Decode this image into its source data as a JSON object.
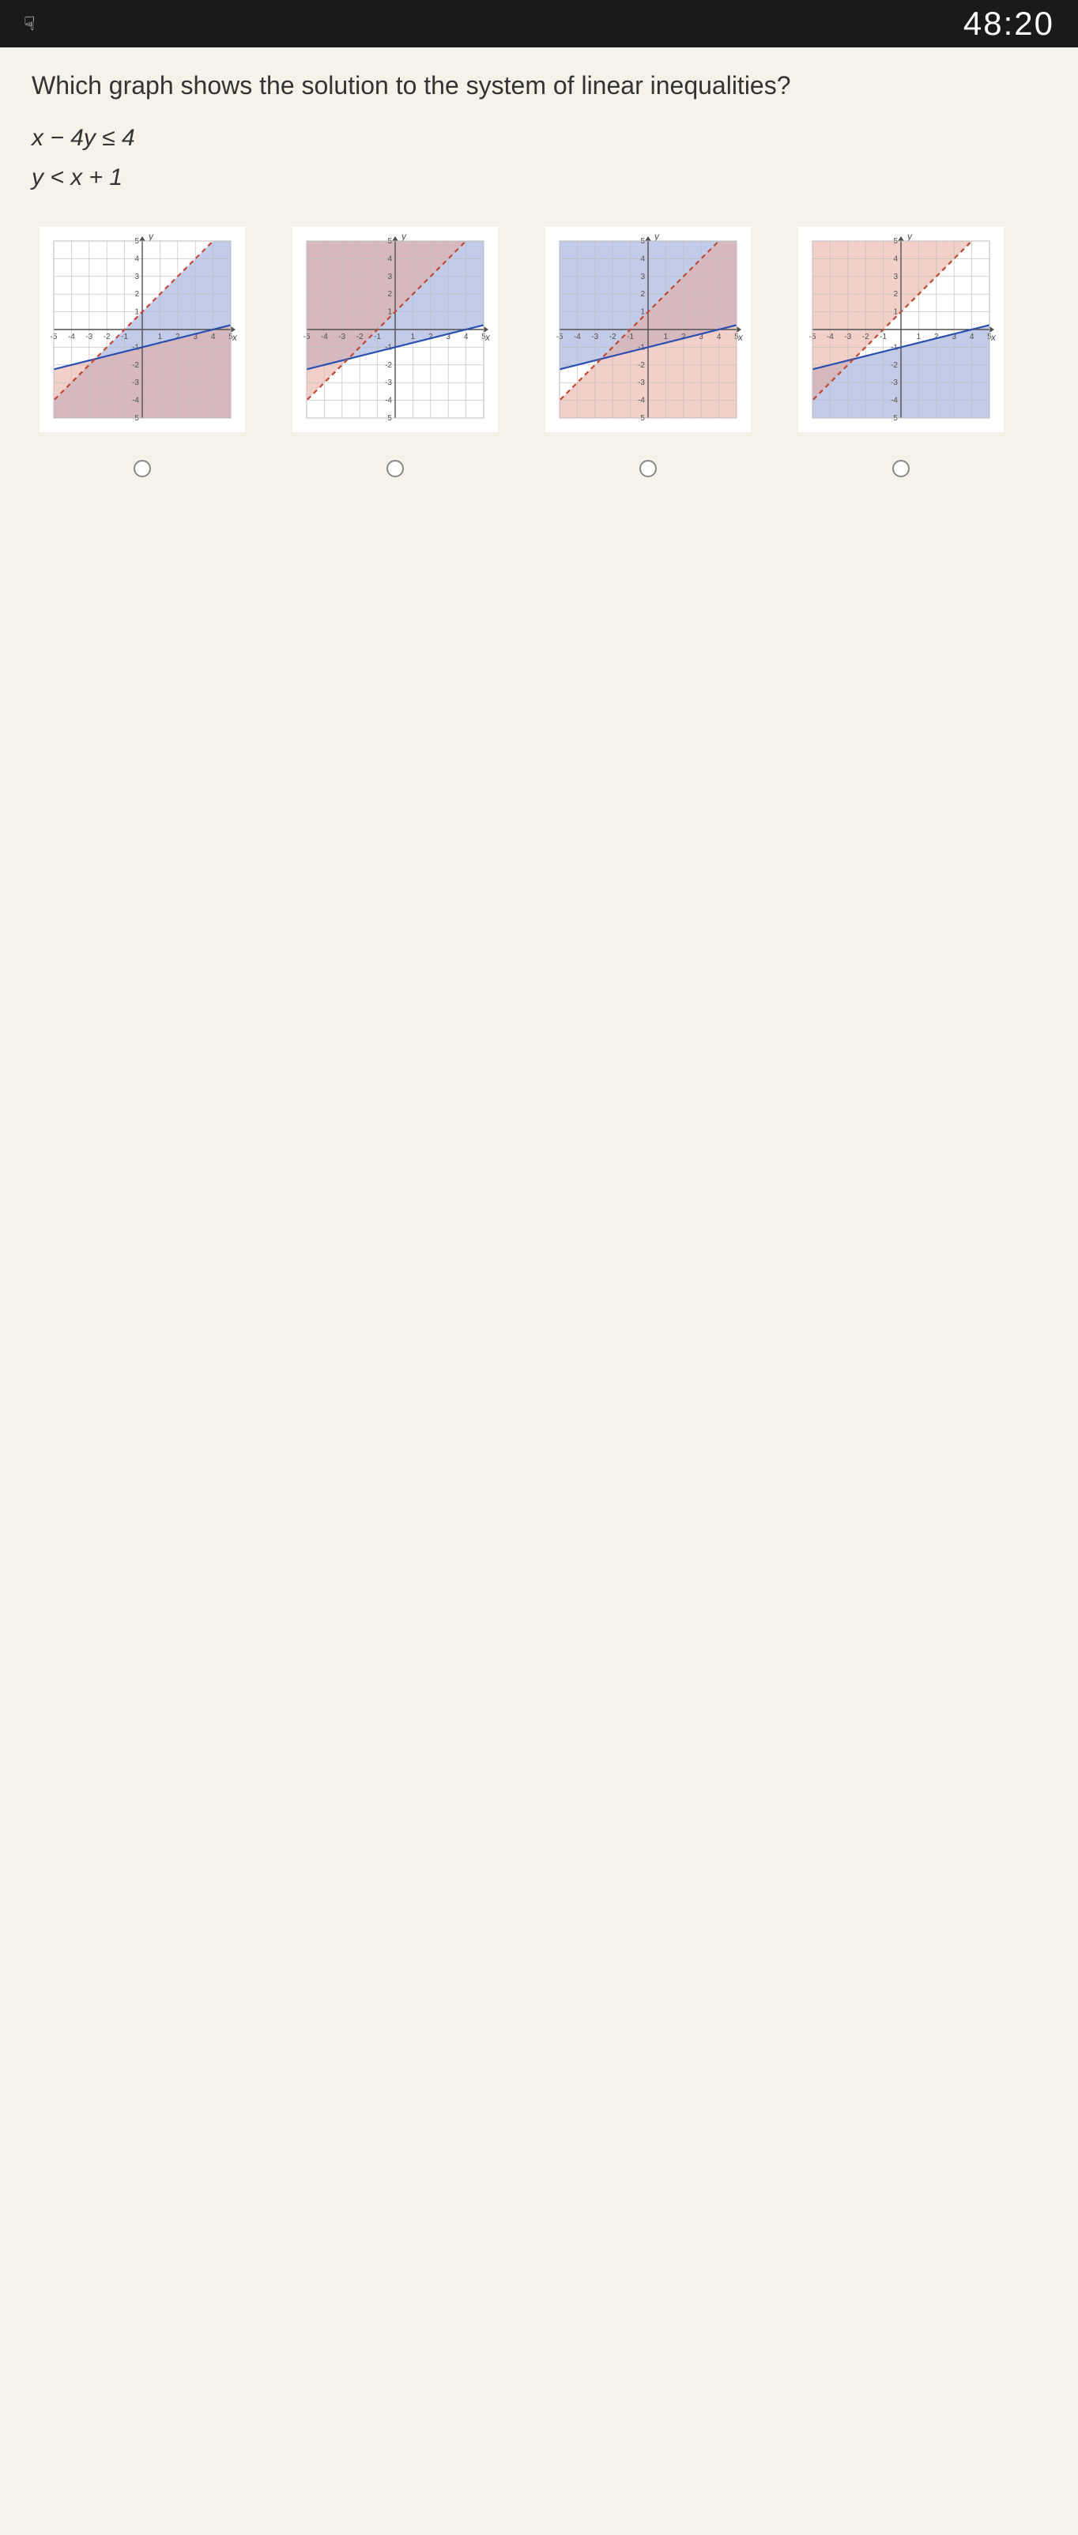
{
  "topbar": {
    "timer": "48:20"
  },
  "question": {
    "prompt": "Which graph shows the solution to the system of linear inequalities?",
    "ineq1_lhs": "x",
    "ineq1_mid": " − 4",
    "ineq1_rhs": "y",
    "ineq1_op": " ≤ 4",
    "ineq2_lhs": "y",
    "ineq2_mid": " < ",
    "ineq2_rhs": "x",
    "ineq2_end": " + 1"
  },
  "grid": {
    "min": -5,
    "max": 5,
    "bg": "#ffffff",
    "grid_color": "#bdbdbd",
    "axis_color": "#505050",
    "tick_fontsize": 10,
    "label_fontsize": 12
  },
  "colors": {
    "blue_fill": "#8fa3d6",
    "red_fill": "#e8a89a",
    "overlap": "#b08bb0",
    "solid_line": "#2a4fb0",
    "dash_line": "#c04a36",
    "fill_opacity": 0.55
  },
  "lines": {
    "lineA": {
      "slope": 0.25,
      "intercept": -1,
      "style": "solid"
    },
    "lineB": {
      "slope": 1,
      "intercept": 1,
      "style": "dash"
    }
  },
  "graphs": [
    {
      "id": "g1",
      "blue_region": "below_lineB",
      "red_region": "below_lineA",
      "lineA_dashed": false,
      "lineB_dashed": true
    },
    {
      "id": "g2",
      "blue_region": "above_lineA",
      "red_region": "above_lineB",
      "lineA_dashed": false,
      "lineB_dashed": true
    },
    {
      "id": "g3",
      "blue_region": "above_lineA",
      "red_region": "below_lineB",
      "lineA_dashed": false,
      "lineB_dashed": true
    },
    {
      "id": "g4",
      "blue_region": "below_lineA",
      "red_region": "above_lineB",
      "lineA_dashed": false,
      "lineB_dashed": true
    }
  ]
}
